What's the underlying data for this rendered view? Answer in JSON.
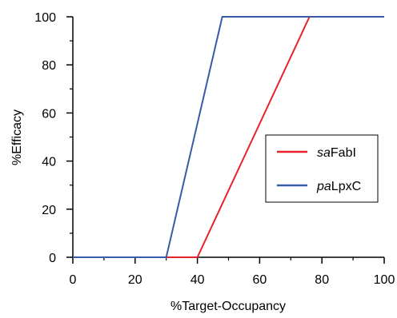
{
  "chart_data": {
    "type": "line",
    "xlabel": "%Target-Occupancy",
    "ylabel": "%Efficacy",
    "xlim": [
      0,
      100
    ],
    "ylim": [
      0,
      100
    ],
    "x_ticks": [
      0,
      20,
      40,
      60,
      80,
      100
    ],
    "y_ticks": [
      0,
      20,
      40,
      60,
      80,
      100
    ],
    "x_tick_labels": [
      "0",
      "20",
      "40",
      "60",
      "80",
      "100"
    ],
    "y_tick_labels": [
      "0",
      "20",
      "40",
      "60",
      "80",
      "100"
    ],
    "x_minor_tick_step": 10,
    "y_minor_tick_step": 10,
    "grid": false,
    "legend_position": "center-right",
    "series": [
      {
        "name": "saFabI",
        "name_italic": "sa",
        "name_rest": "FabI",
        "color": "#e8222b",
        "points": [
          [
            0,
            0
          ],
          [
            40,
            0
          ],
          [
            76,
            100
          ],
          [
            100,
            100
          ]
        ]
      },
      {
        "name": "paLpxC",
        "name_italic": "pa",
        "name_rest": "LpxC",
        "color": "#3a5ba8",
        "points": [
          [
            0,
            0
          ],
          [
            30,
            0
          ],
          [
            48,
            100
          ],
          [
            100,
            100
          ]
        ]
      }
    ]
  }
}
